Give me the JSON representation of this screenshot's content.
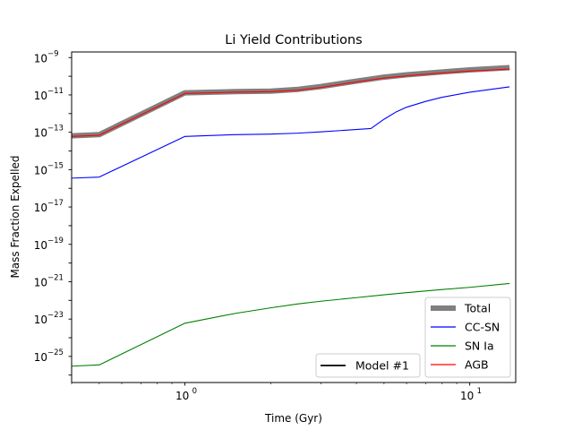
{
  "chart_data": {
    "type": "line",
    "title": "Li Yield Contributions",
    "xlabel": "Time (Gyr)",
    "ylabel": "Mass Fraction Expelled",
    "xscale": "log",
    "yscale": "log",
    "xlim": [
      0.4,
      14.5
    ],
    "ylim": [
      4e-27,
      2e-09
    ],
    "x_ticks": [
      {
        "value": 1,
        "base": "10",
        "exp": "0"
      },
      {
        "value": 10,
        "base": "10",
        "exp": "1"
      }
    ],
    "y_ticks": [
      {
        "value": 1e-09,
        "base": "10",
        "exp": "−9"
      },
      {
        "value": 1e-11,
        "base": "10",
        "exp": "−11"
      },
      {
        "value": 1e-13,
        "base": "10",
        "exp": "−13"
      },
      {
        "value": 1e-15,
        "base": "10",
        "exp": "−15"
      },
      {
        "value": 1e-17,
        "base": "10",
        "exp": "−17"
      },
      {
        "value": 1e-19,
        "base": "10",
        "exp": "−19"
      },
      {
        "value": 1e-21,
        "base": "10",
        "exp": "−21"
      },
      {
        "value": 1e-23,
        "base": "10",
        "exp": "−23"
      },
      {
        "value": 1e-25,
        "base": "10",
        "exp": "−25"
      }
    ],
    "grid": false,
    "series": [
      {
        "name": "Total",
        "color": "#808080",
        "width": 6,
        "x": [
          0.4,
          0.5,
          1.0,
          1.5,
          2.0,
          2.5,
          3.0,
          4.0,
          5.0,
          6.0,
          8.0,
          10.0,
          13.8
        ],
        "y": [
          6.5e-14,
          7.5e-14,
          1.3e-11,
          1.5e-11,
          1.6e-11,
          2e-11,
          2.8e-11,
          5.5e-11,
          9e-11,
          1.2e-10,
          1.7e-10,
          2.2e-10,
          2.9e-10
        ]
      },
      {
        "name": "CC-SN",
        "color": "#0000ff",
        "width": 1.1,
        "x": [
          0.4,
          0.5,
          1.0,
          1.5,
          2.0,
          2.5,
          3.0,
          4.5,
          5.0,
          5.5,
          6.0,
          7.0,
          8.0,
          10.0,
          13.8
        ],
        "y": [
          3.5e-16,
          4e-16,
          6e-14,
          7.5e-14,
          8e-14,
          9e-14,
          1.05e-13,
          1.6e-13,
          5e-13,
          1.2e-12,
          2.2e-12,
          4.5e-12,
          7.5e-12,
          1.4e-11,
          2.7e-11
        ]
      },
      {
        "name": "SN Ia",
        "color": "#008000",
        "width": 1.1,
        "x": [
          0.4,
          0.5,
          1.0,
          1.5,
          2.0,
          2.5,
          3.0,
          4.0,
          5.0,
          6.0,
          8.0,
          10.0,
          13.8
        ],
        "y": [
          3e-26,
          3.5e-26,
          6e-24,
          2e-23,
          4e-23,
          6.5e-23,
          9e-23,
          1.4e-22,
          2e-22,
          2.6e-22,
          3.8e-22,
          5e-22,
          8e-22
        ]
      },
      {
        "name": "AGB",
        "color": "#ff0000",
        "width": 1.1,
        "x": [
          0.4,
          0.5,
          1.0,
          1.5,
          2.0,
          2.5,
          3.0,
          4.0,
          5.0,
          6.0,
          8.0,
          10.0,
          13.8
        ],
        "y": [
          6e-14,
          7e-14,
          1.2e-11,
          1.4e-11,
          1.5e-11,
          1.8e-11,
          2.5e-11,
          5e-11,
          8e-11,
          1.05e-10,
          1.5e-10,
          1.9e-10,
          2.4e-10
        ]
      }
    ],
    "legend": {
      "placement": "lower-right",
      "entries": [
        "Total",
        "CC-SN",
        "SN Ia",
        "AGB"
      ]
    },
    "model_legend": {
      "placement": "lower-center",
      "label": "Model #1",
      "color": "#000000"
    }
  }
}
